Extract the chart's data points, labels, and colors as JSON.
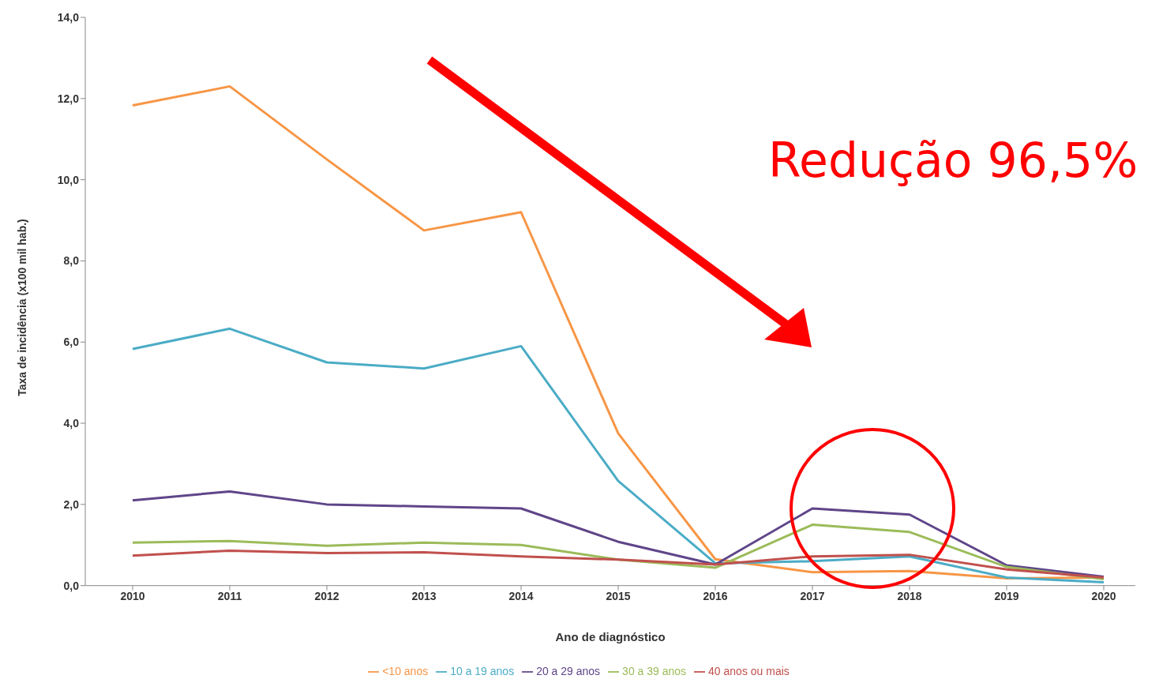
{
  "chart_data": {
    "type": "line",
    "xlabel": "Ano de diagnóstico",
    "ylabel": "Taxa de incidência (x100 mil hab.)",
    "annotations": [
      "Redução 96,5%"
    ],
    "categories": [
      "2010",
      "2011",
      "2012",
      "2013",
      "2014",
      "2015",
      "2016",
      "2017",
      "2018",
      "2019",
      "2020"
    ],
    "ylim": [
      0,
      14
    ],
    "yticks": [
      {
        "value": 0,
        "label": "0,0"
      },
      {
        "value": 2,
        "label": "2,0"
      },
      {
        "value": 4,
        "label": "4,0"
      },
      {
        "value": 6,
        "label": "6,0"
      },
      {
        "value": 8,
        "label": "8,0"
      },
      {
        "value": 10,
        "label": "10,0"
      },
      {
        "value": 12,
        "label": "12,0"
      },
      {
        "value": 14,
        "label": "14,0"
      }
    ],
    "grid": false,
    "legend": "bottom",
    "marker": "none",
    "line_style": "solid",
    "series": [
      {
        "name": "<10 anos",
        "color": "#f79646",
        "values": [
          11.83,
          12.3,
          10.5,
          8.75,
          9.2,
          3.75,
          0.65,
          0.33,
          0.36,
          0.18,
          0.2
        ]
      },
      {
        "name": "10 a 19 anos",
        "color": "#4bacc6",
        "values": [
          5.83,
          6.33,
          5.5,
          5.35,
          5.9,
          2.58,
          0.55,
          0.6,
          0.72,
          0.2,
          0.08
        ]
      },
      {
        "name": "20 a 29 anos",
        "color": "#5f4589",
        "values": [
          2.1,
          2.32,
          2.0,
          1.95,
          1.9,
          1.08,
          0.52,
          1.9,
          1.75,
          0.5,
          0.22
        ]
      },
      {
        "name": "30 a 39 anos",
        "color": "#9bbb59",
        "values": [
          1.06,
          1.1,
          0.98,
          1.06,
          1.0,
          0.64,
          0.44,
          1.5,
          1.32,
          0.46,
          0.16
        ]
      },
      {
        "name": "40 anos ou mais",
        "color": "#c0504d",
        "values": [
          0.74,
          0.86,
          0.8,
          0.82,
          0.72,
          0.64,
          0.52,
          0.72,
          0.76,
          0.4,
          0.2
        ]
      }
    ]
  }
}
